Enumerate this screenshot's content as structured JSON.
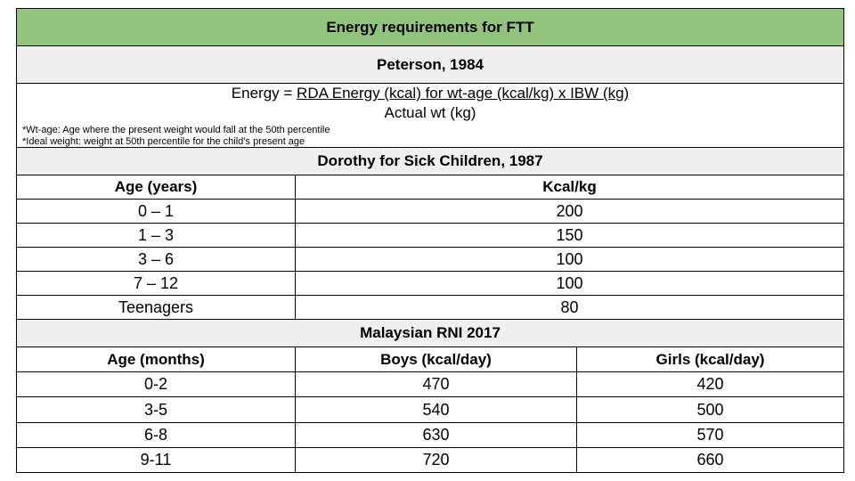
{
  "title": "Energy requirements for FTT",
  "peterson": {
    "heading": "Peterson, 1984",
    "formula_prefix": "Energy = ",
    "formula_numerator": "RDA Energy (kcal) for wt-age (kcal/kg) x IBW (kg)",
    "formula_denominator": "Actual wt (kg)",
    "footnote_1": "*Wt-age: Age where the present weight would fall at the 50th percentile",
    "footnote_2": "*Ideal weight: weight at 50th percentile for the child’s present age"
  },
  "dorothy": {
    "heading": "Dorothy for Sick Children, 1987",
    "col_age": "Age (years)",
    "col_kcal": "Kcal/kg",
    "rows": [
      {
        "age": "0 – 1",
        "kcal": "200"
      },
      {
        "age": "1 – 3",
        "kcal": "150"
      },
      {
        "age": "3 – 6",
        "kcal": "100"
      },
      {
        "age": "7 – 12",
        "kcal": "100"
      },
      {
        "age": "Teenagers",
        "kcal": "80"
      }
    ]
  },
  "malaysian": {
    "heading": "Malaysian RNI 2017",
    "col_age": "Age (months)",
    "col_boys": "Boys (kcal/day)",
    "col_girls": "Girls (kcal/day)",
    "rows": [
      {
        "age": "0-2",
        "boys": "470",
        "girls": "420"
      },
      {
        "age": "3-5",
        "boys": "540",
        "girls": "500"
      },
      {
        "age": "6-8",
        "boys": "630",
        "girls": "570"
      },
      {
        "age": "9-11",
        "boys": "720",
        "girls": "660"
      }
    ]
  },
  "colors": {
    "title_band": "#93c47d",
    "section_band": "#efefef",
    "border": "#000000"
  }
}
